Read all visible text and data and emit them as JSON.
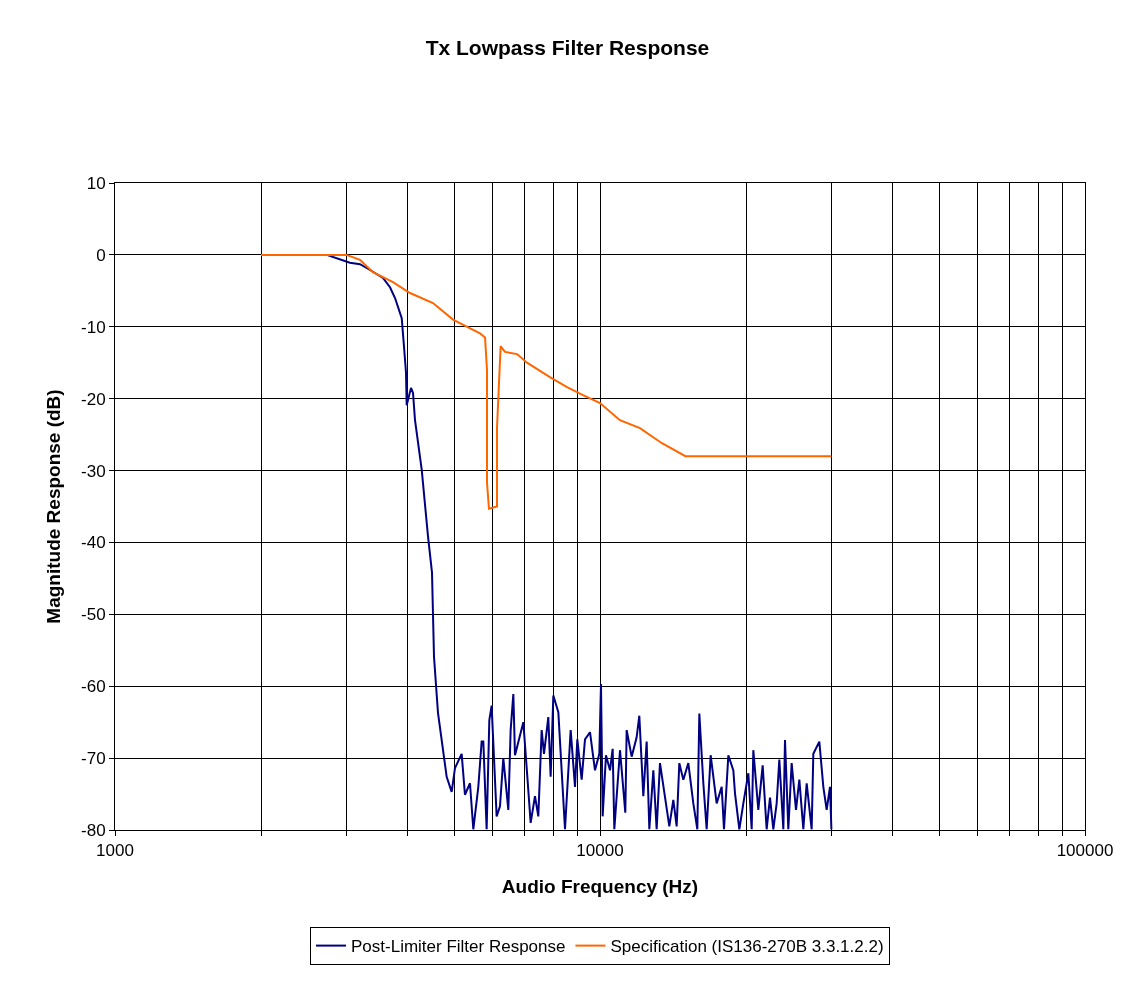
{
  "chart_data": {
    "type": "line",
    "title": "Tx Lowpass Filter Response",
    "xlabel": "Audio Frequency (Hz)",
    "ylabel": "Magnitude Response (dB)",
    "log": "x",
    "grid": true,
    "legend": "bottom",
    "marker": "none",
    "line_style": "solid",
    "xlim": [
      1000,
      100000
    ],
    "ylim": [
      -80,
      10
    ],
    "xticks": [
      1000,
      {
        "value": 2000,
        "label": null
      },
      {
        "value": 3000,
        "label": null
      },
      {
        "value": 4000,
        "label": null
      },
      {
        "value": 5000,
        "label": null
      },
      {
        "value": 6000,
        "label": null
      },
      {
        "value": 7000,
        "label": null
      },
      {
        "value": 8000,
        "label": null
      },
      {
        "value": 9000,
        "label": null
      },
      10000,
      {
        "value": 20000,
        "label": null
      },
      {
        "value": 30000,
        "label": null
      },
      {
        "value": 40000,
        "label": null
      },
      {
        "value": 50000,
        "label": null
      },
      {
        "value": 60000,
        "label": null
      },
      {
        "value": 70000,
        "label": null
      },
      {
        "value": 80000,
        "label": null
      },
      {
        "value": 90000,
        "label": null
      },
      100000
    ],
    "yticks": [
      10,
      0,
      -10,
      -20,
      -30,
      -40,
      -50,
      -60,
      -70,
      -80
    ],
    "series": [
      {
        "name": "Post-Limiter Filter Response",
        "color": "#000080",
        "x": [
          2000,
          2732,
          3050,
          3201,
          3356,
          3569,
          3690,
          3779,
          3901,
          3944,
          3981,
          3994,
          4077,
          4116,
          4155,
          4290,
          4420,
          4504,
          4547,
          4634,
          4829,
          4945,
          5023,
          5185,
          5267,
          5394,
          5480,
          5612,
          5701,
          5747,
          5838,
          5913,
          5978,
          6122,
          6220,
          6319,
          6471,
          6543,
          6627,
          6679,
          6949,
          7082,
          7195,
          7344,
          7461,
          7581,
          7665,
          7824,
          7911,
          8013,
          8205,
          8469,
          8700,
          8881,
          8979,
          9166,
          9312,
          9536,
          9765,
          9968,
          10047,
          10127,
          10288,
          10486,
          10620,
          10704,
          10996,
          11277,
          11350,
          11622,
          11900,
          12052,
          12284,
          12480,
          12639,
          12881,
          13086,
          13295,
          13897,
          14164,
          14390,
          14573,
          14853,
          15209,
          15575,
          15874,
          16025,
          16333,
          16593,
          16911,
          17400,
          17818,
          18016,
          18392,
          18833,
          18982,
          19377,
          19749,
          20223,
          20547,
          20708,
          21205,
          21647,
          22060,
          22414,
          22771,
          23134,
          23429,
          23879,
          24068,
          24451,
          24841,
          25358,
          25762,
          26256,
          26677,
          27316,
          27533,
          28329,
          28872,
          29332,
          29799,
          30000
        ],
        "values": [
          0,
          0,
          -1.1,
          -1.3,
          -2.1,
          -3.2,
          -4.5,
          -6,
          -8.8,
          -12.8,
          -16.4,
          -20.9,
          -18.5,
          -19.2,
          -23,
          -29.9,
          -39.2,
          -44.2,
          -55.9,
          -63.7,
          -72.6,
          -74.7,
          -71.4,
          -69.4,
          -75.1,
          -73.5,
          -79.9,
          -74,
          -67.7,
          -67.7,
          -79.9,
          -64.7,
          -62.7,
          -78.1,
          -76.7,
          -70,
          -77.2,
          -66.1,
          -61.1,
          -69.6,
          -65,
          -72.6,
          -79,
          -75.3,
          -78.1,
          -66.1,
          -69.4,
          -64.3,
          -72.6,
          -61.3,
          -63.6,
          -79.9,
          -66.1,
          -74,
          -67.4,
          -73,
          -67.4,
          -66.4,
          -71.7,
          -69.4,
          -59.7,
          -78.1,
          -69.6,
          -71.7,
          -68.7,
          -79.9,
          -68.9,
          -77.6,
          -66.1,
          -69.8,
          -67.1,
          -64.1,
          -75.3,
          -67.7,
          -79.9,
          -71.7,
          -79.9,
          -70.7,
          -79.5,
          -75.8,
          -79.5,
          -70.7,
          -73,
          -70.7,
          -76.3,
          -79.9,
          -63.8,
          -73.5,
          -79.9,
          -69.6,
          -76.3,
          -74,
          -79.9,
          -69.6,
          -71.7,
          -74.9,
          -79.9,
          -76.3,
          -72.1,
          -79.9,
          -68.9,
          -77.2,
          -71,
          -79.9,
          -75.5,
          -79.9,
          -76.3,
          -70.2,
          -79.9,
          -67.5,
          -79.9,
          -70.7,
          -77.2,
          -73,
          -79.9,
          -73.5,
          -79.9,
          -69.4,
          -67.7,
          -74,
          -77.2,
          -74,
          -79.9
        ]
      },
      {
        "name": "Specification (IS136-270B 3.3.1.2.2)",
        "color": "#ff6600",
        "x": [
          2000,
          3000,
          3201,
          3404,
          3742,
          4058,
          4525,
          4977,
          5655,
          5794,
          5848,
          5848,
          5903,
          6133,
          6133,
          6239,
          6370,
          6745,
          7070,
          7884,
          8550,
          9226,
          10000,
          10990,
          12090,
          13420,
          15000,
          30000
        ],
        "values": [
          0,
          0,
          -0.7,
          -2.4,
          -3.8,
          -5.3,
          -6.7,
          -9,
          -10.9,
          -11.5,
          -16,
          -31.7,
          -35.3,
          -35,
          -24,
          -12.7,
          -13.5,
          -13.8,
          -15,
          -17,
          -18.4,
          -19.5,
          -20.6,
          -23,
          -24.1,
          -26.2,
          -28,
          -28
        ]
      }
    ]
  }
}
